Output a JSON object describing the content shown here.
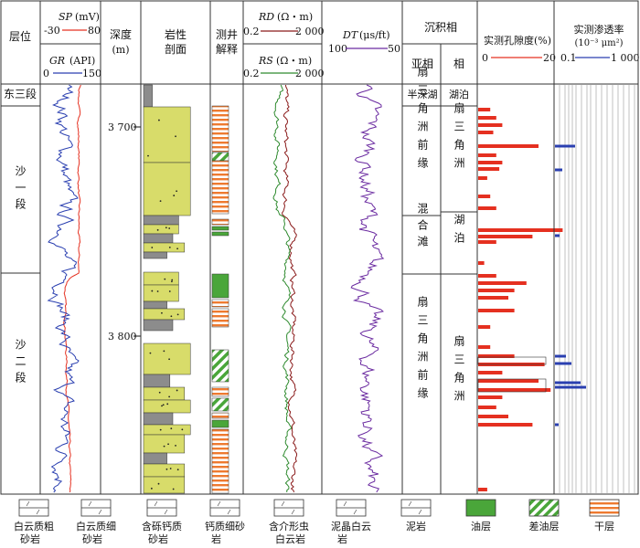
{
  "header": {
    "layer": "层位",
    "sp_label": "SP",
    "sp_unit": "(mV)",
    "sp_min": "-30",
    "sp_max": "80",
    "gr_label": "GR",
    "gr_unit": "(API)",
    "gr_min": "0",
    "gr_max": "150",
    "depth": "深度",
    "depth_unit": "(m)",
    "lith_1": "岩性",
    "lith_2": "剖面",
    "interp_1": "测井",
    "interp_2": "解释",
    "rd_label": "RD",
    "rd_unit": "(Ω・m)",
    "rd_min": "0.2",
    "rd_max": "2 000",
    "rs_label": "RS",
    "rs_unit": "(Ω・m)",
    "rs_min": "0.2",
    "rs_max": "2 000",
    "dt_label": "DT",
    "dt_unit": "(μs/ft)",
    "dt_min": "100",
    "dt_max": "50",
    "facies": "沉积相",
    "subfacies": "亚相",
    "facies_col": "相",
    "por_title": "实测孔隙度(%)",
    "por_min": "0",
    "por_max": "20",
    "perm_title": "实测渗透率",
    "perm_unit": "(10⁻³ μm²)",
    "perm_min": "0.1",
    "perm_max": "1 000"
  },
  "layers": [
    {
      "label": "东三段"
    },
    {
      "label": "沙一段"
    },
    {
      "label": "沙二段"
    }
  ],
  "depth_ticks": [
    "3 700",
    "3 800"
  ],
  "subfacies": [
    {
      "label": "半深湖"
    },
    {
      "label": "扇三角洲前缘"
    },
    {
      "label": "混合滩"
    },
    {
      "label": "扇三角洲前缘"
    }
  ],
  "facies": [
    {
      "label": "湖泊"
    },
    {
      "label": "扇三角洲"
    },
    {
      "label": "湖泊"
    },
    {
      "label": "扇三角洲"
    }
  ],
  "legend": [
    {
      "label": "白云质粗砂岩",
      "icon": "dolomitic-coarse-sandstone"
    },
    {
      "label": "白云质细砂岩",
      "icon": "dolomitic-fine-sandstone"
    },
    {
      "label": "含砾钙质砂岩",
      "icon": "pebbly-calcareous-sandstone"
    },
    {
      "label": "钙质细砂岩",
      "icon": "calcareous-fine-sandstone"
    },
    {
      "label": "含介形虫白云岩",
      "icon": "ostracod-dolomite"
    },
    {
      "label": "泥晶白云岩",
      "icon": "micritic-dolomite"
    },
    {
      "label": "泥岩",
      "icon": "mudstone"
    },
    {
      "label": "油层",
      "icon": "oil-layer"
    },
    {
      "label": "差油层",
      "icon": "poor-oil-layer"
    },
    {
      "label": "干层",
      "icon": "dry-layer"
    }
  ],
  "colors": {
    "sp": "#e53020",
    "gr": "#2a3fb0",
    "rd": "#8a1a1a",
    "rs": "#2e8a2e",
    "dt": "#6a2aa0",
    "sand": "#d8dc6a",
    "mud": "#8c8c8c",
    "oil": "#4aa63a",
    "dry": "#ee7a30",
    "por": "#e53020",
    "perm": "#2a3fb0"
  }
}
